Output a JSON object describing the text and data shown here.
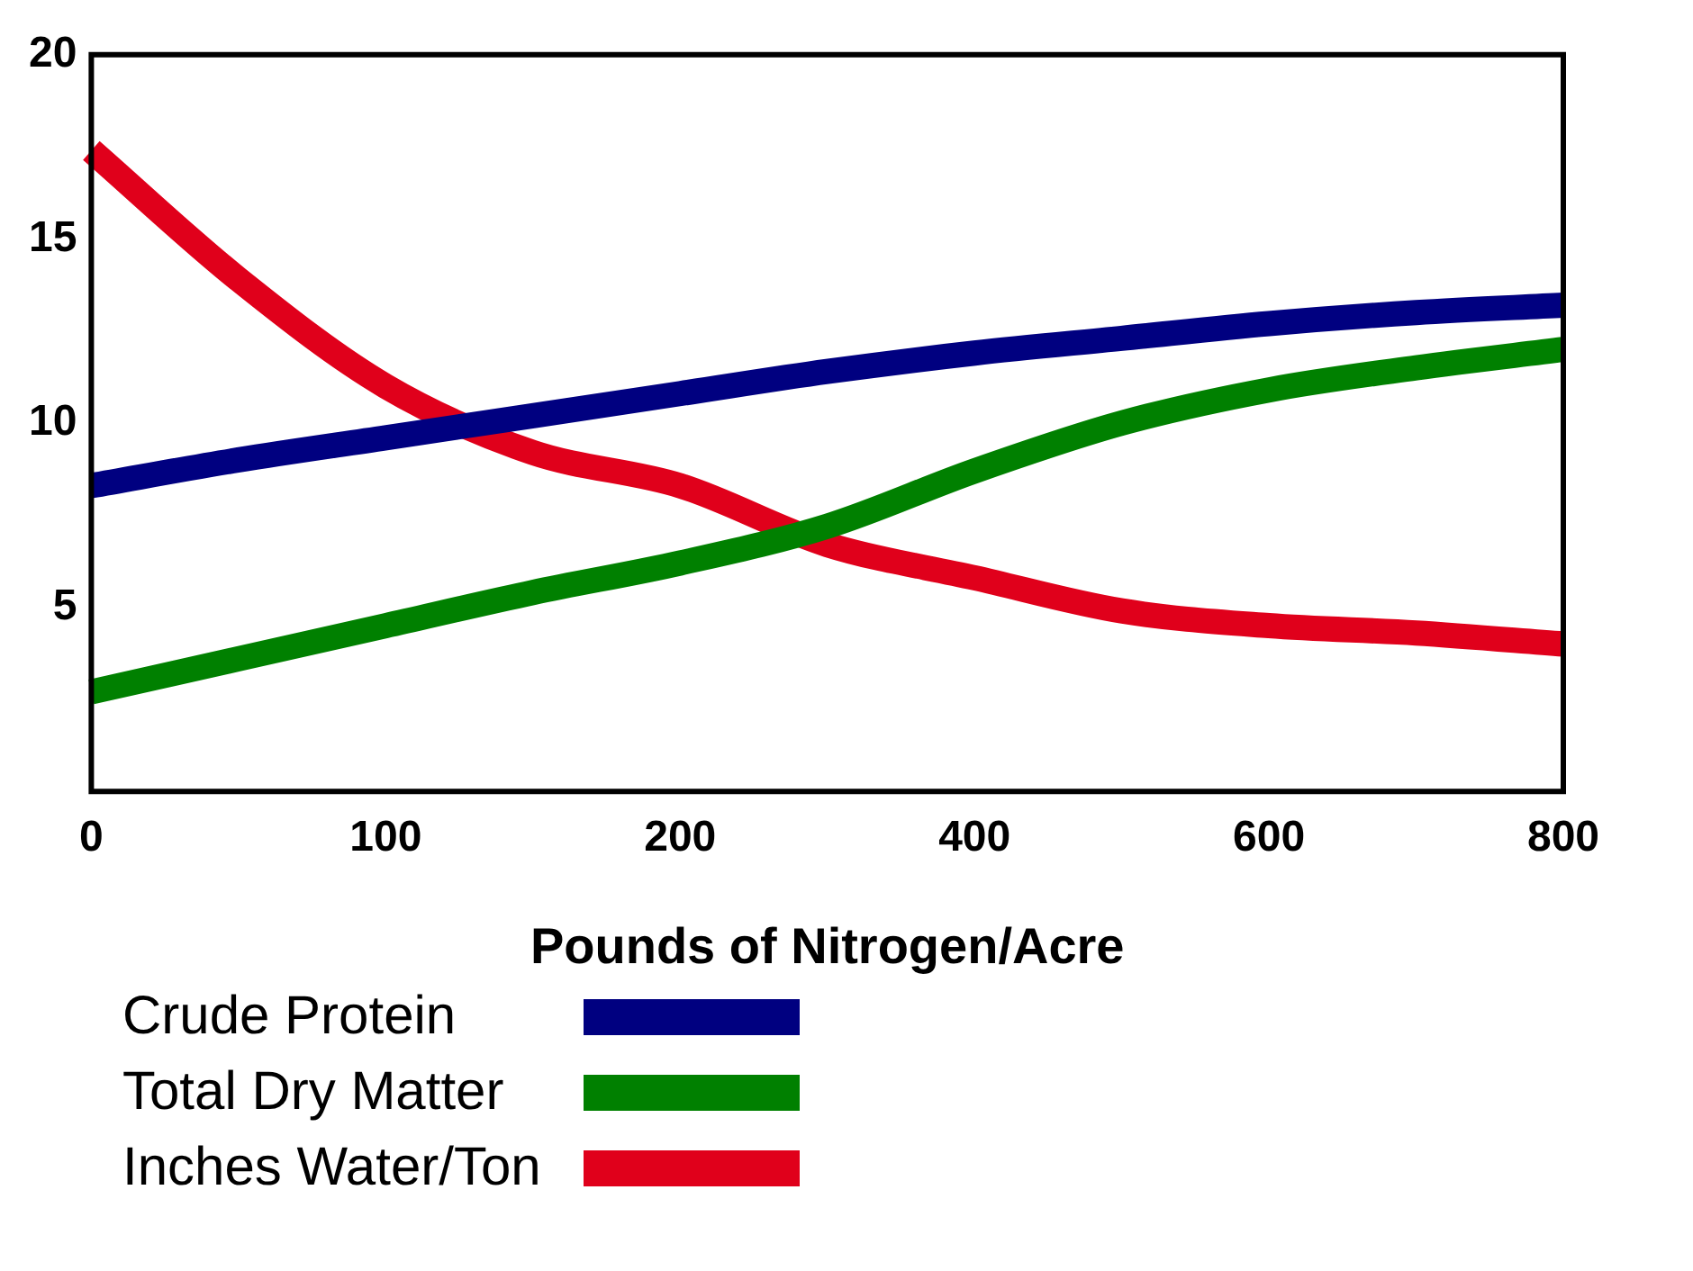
{
  "chart_data": {
    "type": "line",
    "xlabel": "Pounds of Nitrogen/Acre",
    "categories": [
      "0",
      null,
      "100",
      null,
      "200",
      null,
      "400",
      null,
      "600",
      null,
      "800"
    ],
    "series": [
      {
        "name": "Crude Protein",
        "color": "#000080",
        "values": [
          8.3,
          9.0,
          9.6,
          10.2,
          10.8,
          11.4,
          11.9,
          12.3,
          12.7,
          13.0,
          13.2
        ]
      },
      {
        "name": "Total Dry Matter",
        "color": "#008000",
        "values": [
          2.7,
          3.6,
          4.5,
          5.4,
          6.2,
          7.2,
          8.7,
          10.0,
          10.9,
          11.5,
          12.0
        ]
      },
      {
        "name": "Inches Water/Ton",
        "color": "#e0001b",
        "values": [
          17.4,
          13.9,
          11.0,
          9.2,
          8.3,
          6.7,
          5.8,
          4.9,
          4.5,
          4.3,
          4.0
        ]
      }
    ],
    "ylim": [
      0,
      20
    ],
    "yticks": [
      5,
      10,
      15,
      20
    ],
    "grid": false,
    "legend": "bottom left",
    "marker": "none",
    "line_style": "solid"
  }
}
